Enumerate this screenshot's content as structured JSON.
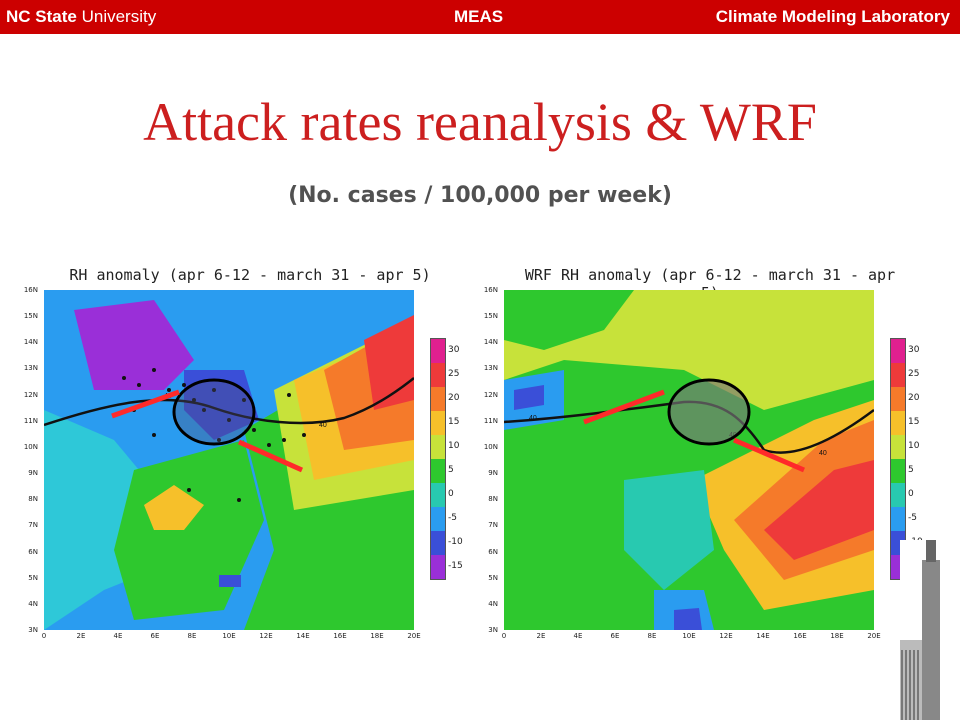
{
  "header": {
    "left_bold": "NC State",
    "left_normal": " University",
    "center": "MEAS",
    "right": "Climate Modeling Laboratory"
  },
  "slide": {
    "title": "Attack rates reanalysis & WRF",
    "subtitle": "(No. cases / 100,000 per week)"
  },
  "maps": [
    {
      "title": "RH anomaly (apr 6-12 - march 31 - apr 5)"
    },
    {
      "title": "WRF RH anomaly (apr 6-12 - march 31 - apr 5)"
    }
  ],
  "axes": {
    "y_ticks": [
      "16N",
      "15N",
      "14N",
      "13N",
      "12N",
      "11N",
      "10N",
      "9N",
      "8N",
      "7N",
      "6N",
      "5N",
      "4N",
      "3N"
    ],
    "x_ticks": [
      "0",
      "2E",
      "4E",
      "6E",
      "8E",
      "10E",
      "12E",
      "14E",
      "16E",
      "18E",
      "20E"
    ]
  },
  "colorbar": {
    "labels": [
      "30",
      "25",
      "20",
      "15",
      "10",
      "5",
      "0",
      "-5",
      "-10",
      "-15"
    ],
    "colors": [
      "#e0208f",
      "#ee3a3a",
      "#f57a2a",
      "#f6c02a",
      "#c7e23a",
      "#2ec82e",
      "#28c9b0",
      "#2a9cf0",
      "#3a4fd8",
      "#9a2fd8"
    ]
  },
  "contour_labels": {
    "value": "40"
  },
  "colors": {
    "header_bar": "#cc0000",
    "title": "#cc1f1f",
    "highlight_line": "#ff2a2a"
  }
}
